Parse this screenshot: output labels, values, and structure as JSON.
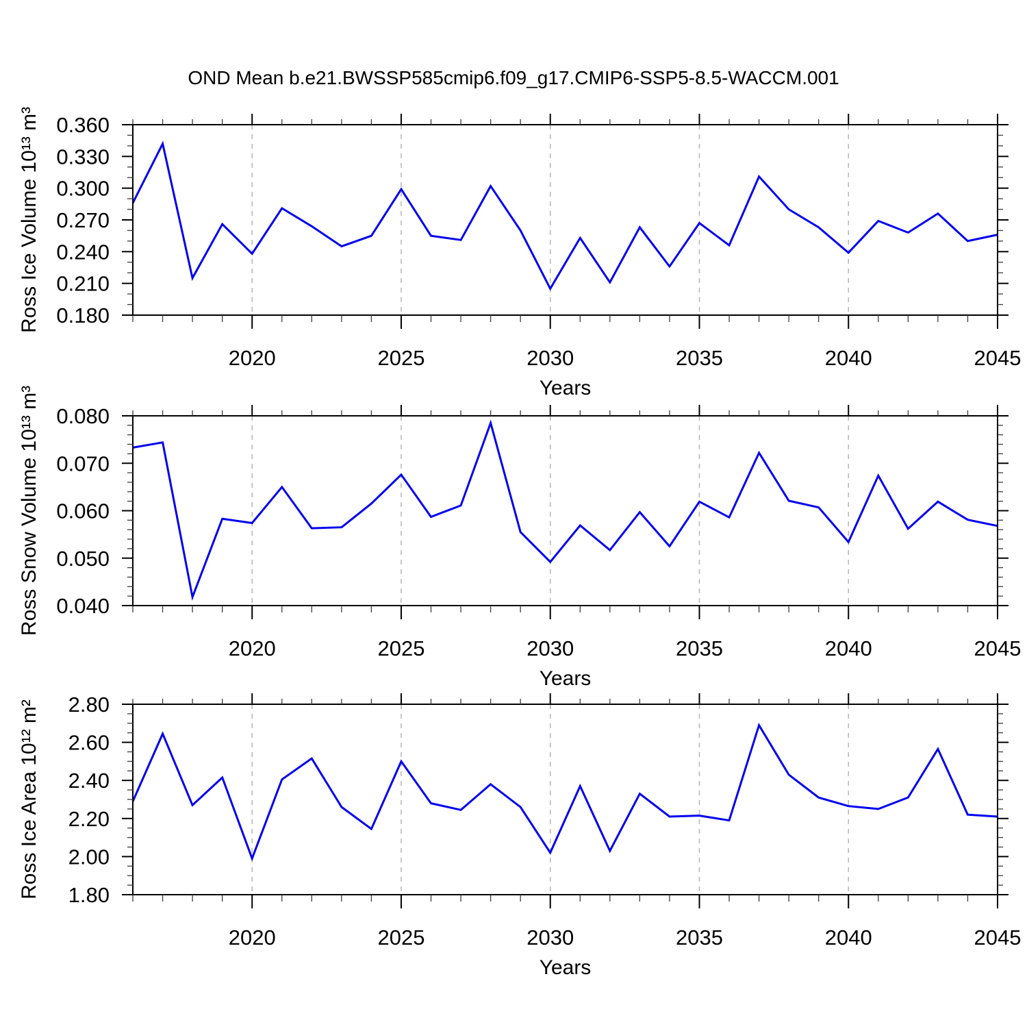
{
  "title": "OND Mean b.e21.BWSSP585cmip6.f09_g17.CMIP6-SSP5-8.5-WACCM.001",
  "colors": {
    "line": "#0000f0",
    "grid": "#b4b4b4",
    "axis": "#000000",
    "minor_tick": "#3a3a3a",
    "background": "#ffffff"
  },
  "xlabel": "Years",
  "xtick_labels": [
    "2020",
    "2025",
    "2030",
    "2035",
    "2040",
    "2045"
  ],
  "xtick_major_years": [
    2020,
    2025,
    2030,
    2035,
    2040,
    2045
  ],
  "grid_years": [
    2020,
    2025,
    2030,
    2035,
    2040
  ],
  "chart_data": [
    {
      "type": "line",
      "title": "",
      "ylabel": "Ross Ice Volume 10¹³ m³",
      "xlabel": "Years",
      "xlim": [
        2016,
        2045
      ],
      "ylim": [
        0.18,
        0.36
      ],
      "yticks": [
        0.18,
        0.21,
        0.24,
        0.27,
        0.3,
        0.33,
        0.36
      ],
      "ytick_labels": [
        "0.180",
        "0.210",
        "0.240",
        "0.270",
        "0.300",
        "0.330",
        "0.360"
      ],
      "ytick_minor_step": 0.01,
      "grid": "vertical-dashed",
      "legend": "none",
      "x": [
        2016,
        2017,
        2018,
        2019,
        2020,
        2021,
        2022,
        2023,
        2024,
        2025,
        2026,
        2027,
        2028,
        2029,
        2030,
        2031,
        2032,
        2033,
        2034,
        2035,
        2036,
        2037,
        2038,
        2039,
        2040,
        2041,
        2042,
        2043,
        2044,
        2045
      ],
      "values": [
        0.286,
        0.342,
        0.215,
        0.266,
        0.238,
        0.281,
        0.264,
        0.245,
        0.255,
        0.299,
        0.255,
        0.251,
        0.302,
        0.26,
        0.205,
        0.253,
        0.211,
        0.263,
        0.226,
        0.267,
        0.246,
        0.311,
        0.28,
        0.263,
        0.239,
        0.269,
        0.258,
        0.276,
        0.25,
        0.256
      ]
    },
    {
      "type": "line",
      "title": "",
      "ylabel": "Ross Snow Volume 10¹³ m³",
      "xlabel": "Years",
      "xlim": [
        2016,
        2045
      ],
      "ylim": [
        0.04,
        0.08
      ],
      "yticks": [
        0.04,
        0.05,
        0.06,
        0.07,
        0.08
      ],
      "ytick_labels": [
        "0.040",
        "0.050",
        "0.060",
        "0.070",
        "0.080"
      ],
      "ytick_minor_step": 0.002,
      "grid": "vertical-dashed",
      "legend": "none",
      "x": [
        2016,
        2017,
        2018,
        2019,
        2020,
        2021,
        2022,
        2023,
        2024,
        2025,
        2026,
        2027,
        2028,
        2029,
        2030,
        2031,
        2032,
        2033,
        2034,
        2035,
        2036,
        2037,
        2038,
        2039,
        2040,
        2041,
        2042,
        2043,
        2044,
        2045
      ],
      "values": [
        0.0733,
        0.0744,
        0.0418,
        0.0583,
        0.0574,
        0.065,
        0.0563,
        0.0565,
        0.0615,
        0.0676,
        0.0587,
        0.0611,
        0.0785,
        0.0555,
        0.0492,
        0.0569,
        0.0517,
        0.0597,
        0.0525,
        0.0619,
        0.0586,
        0.0722,
        0.0621,
        0.0607,
        0.0534,
        0.0674,
        0.0562,
        0.0619,
        0.0581,
        0.0568
      ]
    },
    {
      "type": "line",
      "title": "",
      "ylabel": "Ross Ice Area 10¹² m²",
      "xlabel": "Years",
      "xlim": [
        2016,
        2045
      ],
      "ylim": [
        1.8,
        2.8
      ],
      "yticks": [
        1.8,
        2.0,
        2.2,
        2.4,
        2.6,
        2.8
      ],
      "ytick_labels": [
        "1.80",
        "2.00",
        "2.20",
        "2.40",
        "2.60",
        "2.80"
      ],
      "ytick_minor_step": 0.05,
      "grid": "vertical-dashed",
      "legend": "none",
      "x": [
        2016,
        2017,
        2018,
        2019,
        2020,
        2021,
        2022,
        2023,
        2024,
        2025,
        2026,
        2027,
        2028,
        2029,
        2030,
        2031,
        2032,
        2033,
        2034,
        2035,
        2036,
        2037,
        2038,
        2039,
        2040,
        2041,
        2042,
        2043,
        2044,
        2045
      ],
      "values": [
        2.29,
        2.645,
        2.27,
        2.415,
        1.99,
        2.405,
        2.515,
        2.26,
        2.145,
        2.5,
        2.28,
        2.245,
        2.38,
        2.26,
        2.02,
        2.37,
        2.03,
        2.33,
        2.21,
        2.215,
        2.19,
        2.69,
        2.43,
        2.31,
        2.265,
        2.25,
        2.31,
        2.565,
        2.22,
        2.21
      ]
    }
  ]
}
